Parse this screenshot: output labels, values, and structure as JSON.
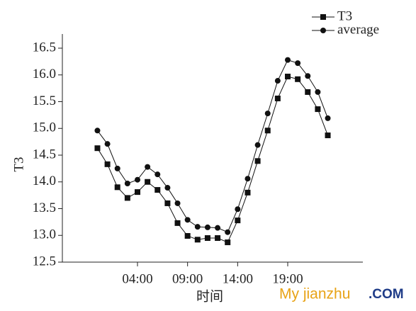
{
  "chart_data": {
    "type": "line",
    "x_label": "时间",
    "y_label": "T3",
    "x": [
      0,
      1,
      2,
      3,
      4,
      5,
      6,
      7,
      8,
      9,
      10,
      11,
      12,
      13,
      14,
      15,
      16,
      17,
      18,
      19,
      20,
      21,
      22,
      23
    ],
    "xlim": [
      -3.5,
      26.5
    ],
    "xticks": [
      {
        "value": 4,
        "label": "04:00"
      },
      {
        "value": 9,
        "label": "09:00"
      },
      {
        "value": 14,
        "label": "14:00"
      },
      {
        "value": 19,
        "label": "19:00"
      }
    ],
    "ylim": [
      12.5,
      16.5
    ],
    "yticks": [
      {
        "value": 12.5,
        "label": "12.5"
      },
      {
        "value": 13,
        "label": "13.0"
      },
      {
        "value": 13.5,
        "label": "13.5"
      },
      {
        "value": 14,
        "label": "14.0"
      },
      {
        "value": 14.5,
        "label": "14.5"
      },
      {
        "value": 15,
        "label": "15.0"
      },
      {
        "value": 15.5,
        "label": "15.5"
      },
      {
        "value": 16,
        "label": "16.0"
      },
      {
        "value": 16.5,
        "label": "16.5"
      }
    ],
    "legend": "top-right",
    "series": [
      {
        "name": "T3",
        "color": "#111111",
        "marker": "square",
        "values": [
          14.63,
          14.33,
          13.9,
          13.7,
          13.81,
          14.0,
          13.85,
          13.6,
          13.23,
          12.99,
          12.92,
          12.95,
          12.95,
          12.87,
          13.28,
          13.8,
          14.39,
          14.96,
          15.56,
          15.97,
          15.92,
          15.68,
          15.36,
          14.87
        ]
      },
      {
        "name": "average",
        "color": "#111111",
        "marker": "circle",
        "values": [
          14.96,
          14.71,
          14.25,
          13.97,
          14.04,
          14.28,
          14.14,
          13.89,
          13.6,
          13.29,
          13.16,
          13.15,
          13.14,
          13.06,
          13.49,
          14.06,
          14.69,
          15.28,
          15.89,
          16.28,
          16.22,
          15.98,
          15.68,
          15.19
        ]
      }
    ],
    "watermark": {
      "brand": "My jianzhu",
      "suffix": ".COM"
    }
  }
}
